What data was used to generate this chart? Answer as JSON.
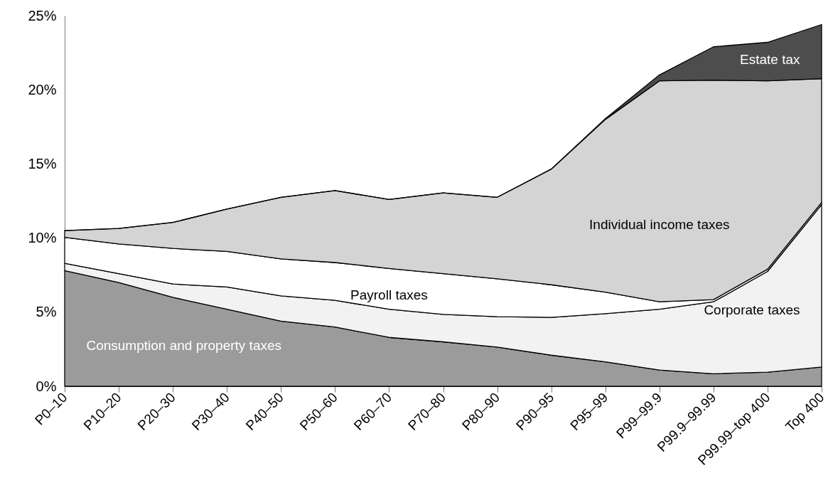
{
  "chart_data": {
    "type": "area",
    "stacked": true,
    "categories": [
      "P0–10",
      "P10–20",
      "P20–30",
      "P30–40",
      "P40–50",
      "P50–60",
      "P60–70",
      "P70–80",
      "P80–90",
      "P90–95",
      "P95–99",
      "P99–99.9",
      "P99.9–99.99",
      "P99.99–top 400",
      "Top 400"
    ],
    "series": [
      {
        "name": "Consumption and property taxes",
        "color": "#9b9b9b",
        "values": [
          7.8,
          7.0,
          6.0,
          5.2,
          4.4,
          4.0,
          3.3,
          3.0,
          2.65,
          2.1,
          1.65,
          1.1,
          0.85,
          0.95,
          1.3
        ]
      },
      {
        "name": "Corporate taxes",
        "color": "#f2f2f2",
        "values": [
          0.5,
          0.6,
          0.9,
          1.5,
          1.7,
          1.8,
          1.9,
          1.85,
          2.05,
          2.55,
          3.25,
          4.1,
          4.85,
          6.8,
          10.95
        ]
      },
      {
        "name": "Payroll taxes",
        "color": "#ffffff",
        "values": [
          1.75,
          2.0,
          2.4,
          2.4,
          2.5,
          2.55,
          2.75,
          2.75,
          2.55,
          2.2,
          1.45,
          0.5,
          0.15,
          0.15,
          0.15
        ]
      },
      {
        "name": "Individual income taxes",
        "color": "#d4d4d4",
        "values": [
          0.45,
          1.05,
          1.75,
          2.85,
          4.15,
          4.85,
          4.65,
          5.45,
          5.5,
          7.8,
          11.65,
          14.9,
          14.8,
          12.7,
          8.35
        ]
      },
      {
        "name": "Estate tax",
        "color": "#4d4d4d",
        "values": [
          0,
          0,
          0,
          0,
          0,
          0,
          0,
          0,
          0,
          0,
          0.05,
          0.4,
          2.25,
          2.6,
          3.65
        ]
      }
    ],
    "ylim": [
      0,
      25
    ],
    "yticks": [
      {
        "value": 0,
        "label": "0%"
      },
      {
        "value": 5,
        "label": "5%"
      },
      {
        "value": 10,
        "label": "10%"
      },
      {
        "value": 15,
        "label": "15%"
      },
      {
        "value": 20,
        "label": "20%"
      },
      {
        "value": 25,
        "label": "25%"
      }
    ],
    "grid": false,
    "legend": false
  }
}
